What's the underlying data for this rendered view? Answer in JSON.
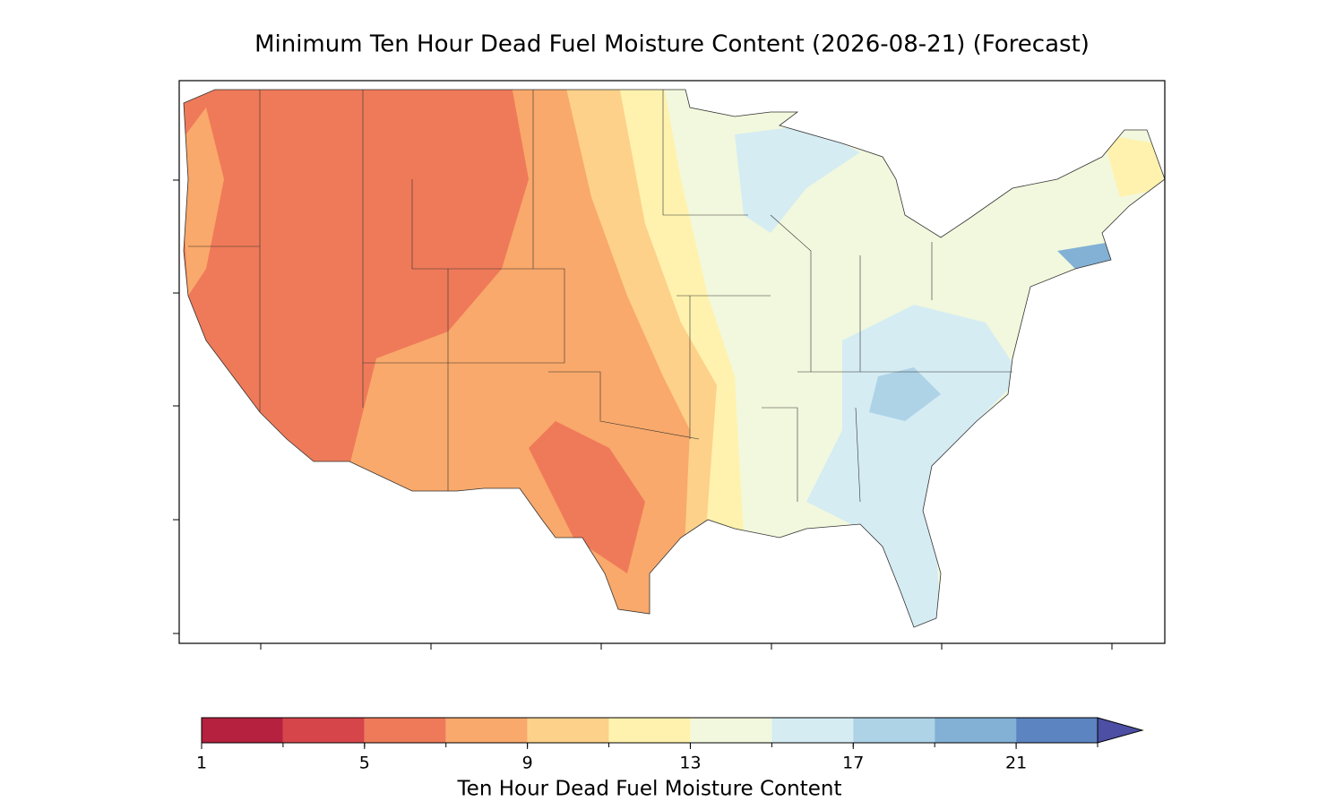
{
  "map": {
    "title": "Minimum Ten Hour Dead Fuel Moisture Content (2026-08-21) (Forecast)",
    "colorbar": {
      "label": "Ten Hour Dead Fuel Moisture Content",
      "boundaries": [
        1,
        3,
        5,
        7,
        9,
        11,
        13,
        15,
        17,
        19,
        21,
        23
      ],
      "ticks": [
        1,
        5,
        9,
        13,
        17,
        21
      ],
      "colors": [
        "#b5213f",
        "#d6454a",
        "#ef7a59",
        "#f9a96b",
        "#fdd18a",
        "#fff2ae",
        "#f2f8dd",
        "#d5ecf3",
        "#aed3e7",
        "#82b1d5",
        "#5b84c0"
      ],
      "extend_color": "#4c4fa3"
    }
  }
}
